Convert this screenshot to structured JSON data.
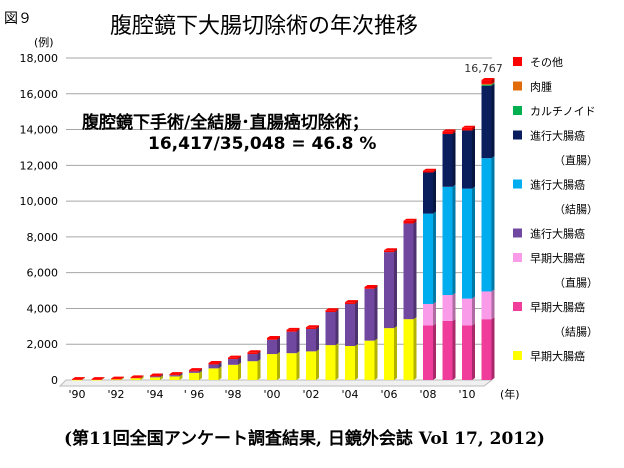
{
  "figure_label": "図９",
  "chart_data": {
    "type": "bar",
    "stacked": true,
    "title": "腹腔鏡下大腸切除術の年次推移",
    "ylabel": "(例)",
    "xlabel": "(年)",
    "ylim": [
      0,
      18000
    ],
    "yticks": [
      "0",
      "2,000",
      "4,000",
      "6,000",
      "8,000",
      "10,000",
      "12,000",
      "14,000",
      "16,000",
      "18,000"
    ],
    "grid": true,
    "legend_position": "right",
    "categories": [
      1990,
      1991,
      1992,
      1993,
      1994,
      1995,
      1996,
      1997,
      1998,
      1999,
      2000,
      2001,
      2002,
      2003,
      2004,
      2005,
      2006,
      2007,
      2008,
      2009,
      2010,
      2011
    ],
    "xtick_labels": [
      "'90",
      "",
      "'92",
      "",
      "'94",
      "",
      " ' 96",
      "",
      "'98",
      "",
      "'00",
      "",
      "'02",
      "",
      "'04",
      "",
      "'06",
      "",
      "'08",
      "",
      "'10",
      ""
    ],
    "series": [
      {
        "name": "早期大腸癌",
        "color": "#FFFF00",
        "values": [
          20,
          20,
          40,
          100,
          150,
          200,
          400,
          650,
          850,
          1050,
          1450,
          1500,
          1600,
          1950,
          1900,
          2200,
          2900,
          3400,
          0,
          0,
          0,
          0
        ]
      },
      {
        "name": "早期大腸癌（結腸）",
        "color": "#F03C9A",
        "values": [
          0,
          0,
          0,
          0,
          0,
          0,
          0,
          0,
          0,
          0,
          0,
          0,
          0,
          0,
          0,
          0,
          0,
          0,
          3050,
          3300,
          3050,
          3400
        ]
      },
      {
        "name": "早期大腸癌（直腸）",
        "color": "#F99BE8",
        "values": [
          0,
          0,
          0,
          0,
          0,
          0,
          0,
          0,
          0,
          0,
          0,
          0,
          0,
          0,
          0,
          0,
          0,
          0,
          1200,
          1450,
          1500,
          1550
        ]
      },
      {
        "name": "進行大腸癌",
        "color": "#7048A0",
        "values": [
          0,
          0,
          0,
          0,
          50,
          70,
          80,
          220,
          320,
          400,
          800,
          1200,
          1250,
          1850,
          2350,
          2900,
          4250,
          5350,
          0,
          0,
          0,
          0
        ]
      },
      {
        "name": "進行大腸癌（結腸）",
        "color": "#00AEEF",
        "values": [
          0,
          0,
          0,
          0,
          0,
          0,
          0,
          0,
          0,
          0,
          0,
          0,
          0,
          0,
          0,
          0,
          0,
          0,
          5050,
          6050,
          6150,
          7450
        ]
      },
      {
        "name": "進行大腸癌（直腸）",
        "color": "#0A1E5E",
        "values": [
          0,
          0,
          0,
          0,
          0,
          0,
          0,
          0,
          0,
          0,
          0,
          0,
          0,
          0,
          0,
          0,
          0,
          0,
          2300,
          2950,
          3250,
          4050
        ]
      },
      {
        "name": "カルチノイド",
        "color": "#00B050",
        "values": [
          0,
          0,
          0,
          0,
          0,
          0,
          0,
          0,
          0,
          0,
          0,
          0,
          0,
          0,
          0,
          0,
          0,
          0,
          0,
          0,
          0,
          60
        ]
      },
      {
        "name": "肉腫",
        "color": "#E36C0A",
        "values": [
          0,
          0,
          0,
          0,
          0,
          0,
          0,
          0,
          0,
          0,
          0,
          0,
          0,
          0,
          0,
          0,
          0,
          0,
          0,
          0,
          0,
          40
        ]
      },
      {
        "name": "その他",
        "color": "#FF0000",
        "values": [
          30,
          30,
          40,
          50,
          50,
          60,
          70,
          80,
          80,
          100,
          100,
          100,
          100,
          100,
          100,
          100,
          100,
          150,
          100,
          150,
          150,
          217
        ]
      }
    ],
    "annotations": {
      "total_2011": "16,767",
      "line1": "腹腔鏡下手術/全結腸･直腸癌切除術；",
      "line2": "16,417/35,048 = 46.8 %"
    },
    "legend": [
      {
        "label": "その他",
        "sub": "",
        "color": "#FF0000"
      },
      {
        "label": "肉腫",
        "sub": "",
        "color": "#E36C0A"
      },
      {
        "label": "カルチノイド",
        "sub": "",
        "color": "#00B050"
      },
      {
        "label": "進行大腸癌",
        "sub": "（直腸）",
        "color": "#0A1E5E"
      },
      {
        "label": "進行大腸癌",
        "sub": "（結腸）",
        "color": "#00AEEF"
      },
      {
        "label": "進行大腸癌",
        "sub": "",
        "color": "#7048A0"
      },
      {
        "label": "早期大腸癌",
        "sub": "（直腸）",
        "color": "#F99BE8"
      },
      {
        "label": "早期大腸癌",
        "sub": "（結腸）",
        "color": "#F03C9A"
      },
      {
        "label": "早期大腸癌",
        "sub": "",
        "color": "#FFFF00"
      }
    ]
  },
  "source": "(第11回全国アンケート調査結果, 日鏡外会誌 Vol 17, 2012)"
}
